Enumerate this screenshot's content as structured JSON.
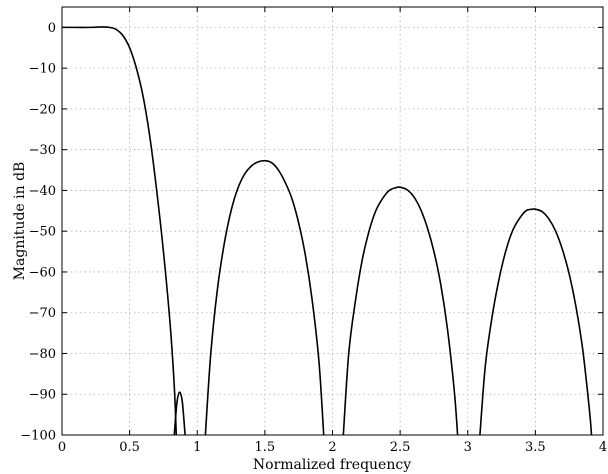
{
  "chart_data": {
    "type": "line",
    "title": "",
    "xlabel": "Normalized frequency",
    "ylabel": "Magnitude in dB",
    "xlim": [
      0,
      4
    ],
    "ylim": [
      -100,
      5
    ],
    "xticks": [
      0,
      0.5,
      1,
      1.5,
      2,
      2.5,
      3,
      3.5,
      4
    ],
    "xtick_labels": [
      "0",
      "0.5",
      "1",
      "1.5",
      "2",
      "2.5",
      "3",
      "3.5",
      "4"
    ],
    "yticks": [
      0,
      -10,
      -20,
      -30,
      -40,
      -50,
      -60,
      -70,
      -80,
      -90,
      -100
    ],
    "ytick_labels": [
      "0",
      "−10",
      "−20",
      "−30",
      "−40",
      "−50",
      "−60",
      "−70",
      "−80",
      "−90",
      "−100"
    ],
    "grid": true,
    "series": [
      {
        "segments": [
          [
            [
              0,
              0
            ],
            [
              0.1,
              0
            ],
            [
              0.2,
              0
            ],
            [
              0.3,
              0.1
            ],
            [
              0.35,
              0
            ],
            [
              0.4,
              -0.5
            ],
            [
              0.45,
              -2
            ],
            [
              0.5,
              -5
            ],
            [
              0.55,
              -10
            ],
            [
              0.6,
              -17
            ],
            [
              0.65,
              -27
            ],
            [
              0.7,
              -40
            ],
            [
              0.75,
              -55
            ],
            [
              0.8,
              -73
            ],
            [
              0.83,
              -88
            ],
            [
              0.845,
              -100
            ]
          ],
          [
            [
              0.83,
              -100
            ],
            [
              0.85,
              -92
            ],
            [
              0.87,
              -89.5
            ],
            [
              0.89,
              -92
            ],
            [
              0.91,
              -100
            ]
          ],
          [
            [
              1.06,
              -100
            ],
            [
              1.1,
              -80
            ],
            [
              1.15,
              -64
            ],
            [
              1.2,
              -53
            ],
            [
              1.25,
              -45
            ],
            [
              1.3,
              -39.5
            ],
            [
              1.35,
              -36
            ],
            [
              1.4,
              -34
            ],
            [
              1.45,
              -33
            ],
            [
              1.5,
              -32.7
            ],
            [
              1.55,
              -33.2
            ],
            [
              1.6,
              -35
            ],
            [
              1.65,
              -38
            ],
            [
              1.7,
              -42
            ],
            [
              1.75,
              -48
            ],
            [
              1.8,
              -56
            ],
            [
              1.85,
              -67
            ],
            [
              1.9,
              -82
            ],
            [
              1.935,
              -100
            ]
          ],
          [
            [
              2.08,
              -100
            ],
            [
              2.12,
              -80
            ],
            [
              2.17,
              -67
            ],
            [
              2.22,
              -57
            ],
            [
              2.27,
              -50
            ],
            [
              2.32,
              -45
            ],
            [
              2.37,
              -42
            ],
            [
              2.42,
              -40
            ],
            [
              2.47,
              -39.3
            ],
            [
              2.5,
              -39.2
            ],
            [
              2.55,
              -39.8
            ],
            [
              2.6,
              -41.5
            ],
            [
              2.65,
              -44.5
            ],
            [
              2.7,
              -49
            ],
            [
              2.75,
              -55
            ],
            [
              2.8,
              -63
            ],
            [
              2.85,
              -74
            ],
            [
              2.9,
              -89
            ],
            [
              2.925,
              -100
            ]
          ],
          [
            [
              3.09,
              -100
            ],
            [
              3.13,
              -83
            ],
            [
              3.18,
              -71
            ],
            [
              3.23,
              -62
            ],
            [
              3.28,
              -55
            ],
            [
              3.33,
              -50
            ],
            [
              3.38,
              -47
            ],
            [
              3.43,
              -45
            ],
            [
              3.48,
              -44.6
            ],
            [
              3.5,
              -44.6
            ],
            [
              3.55,
              -45.2
            ],
            [
              3.6,
              -47
            ],
            [
              3.65,
              -50
            ],
            [
              3.7,
              -54.5
            ],
            [
              3.75,
              -60.5
            ],
            [
              3.8,
              -68.5
            ],
            [
              3.85,
              -79
            ],
            [
              3.9,
              -94
            ],
            [
              3.915,
              -100
            ]
          ]
        ]
      }
    ]
  }
}
